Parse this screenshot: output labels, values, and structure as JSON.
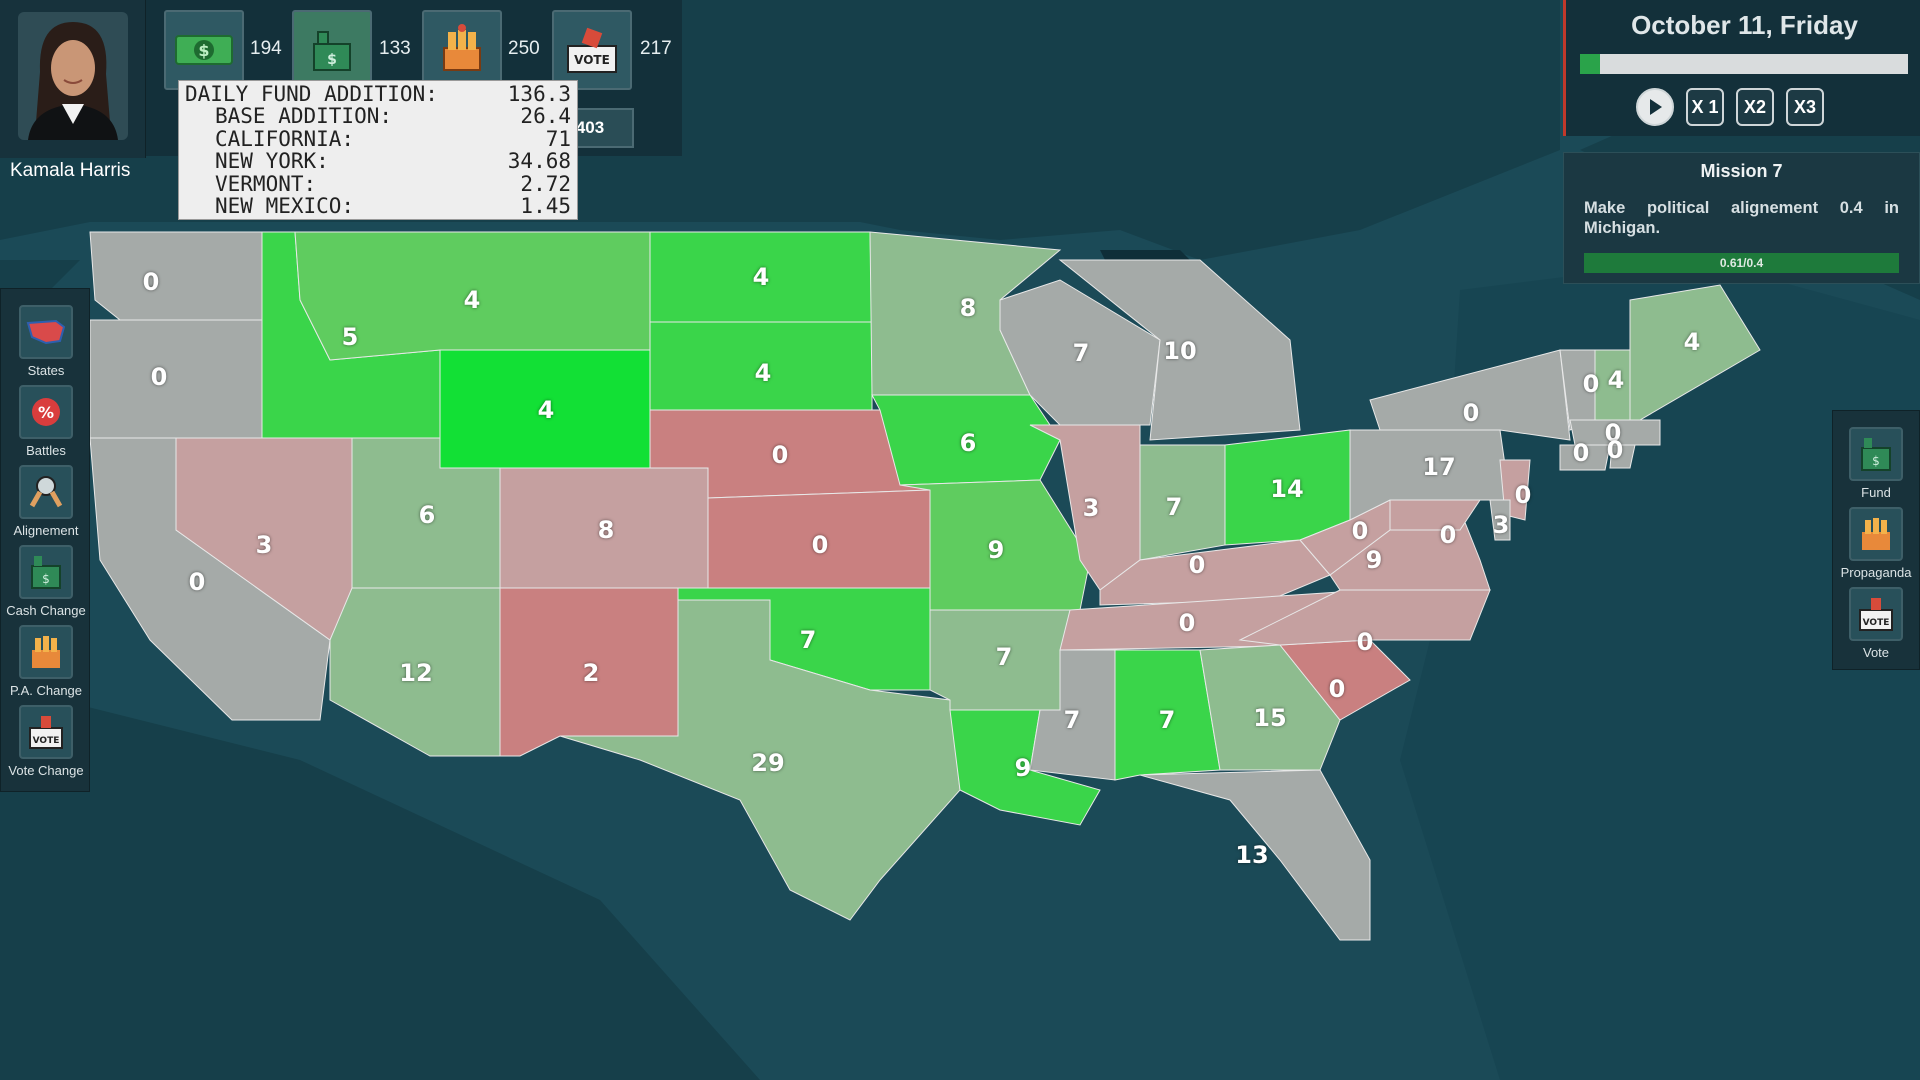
{
  "candidate": {
    "name": "Kamala Harris"
  },
  "resources": [
    {
      "icon": "money-icon",
      "value": "194"
    },
    {
      "icon": "fund-building-icon",
      "value": "133"
    },
    {
      "icon": "propaganda-fist-icon",
      "value": "250"
    },
    {
      "icon": "vote-box-icon",
      "value": "217"
    }
  ],
  "secondary_value": "403",
  "tooltip": {
    "rows": [
      {
        "label": "DAILY FUND ADDITION:",
        "value": "136.3"
      },
      {
        "label": "BASE ADDITION:",
        "value": "26.4"
      },
      {
        "label": "CALIFORNIA:",
        "value": "71"
      },
      {
        "label": "NEW YORK:",
        "value": "34.68"
      },
      {
        "label": "VERMONT:",
        "value": "2.72"
      },
      {
        "label": "NEW MEXICO:",
        "value": "1.45"
      }
    ]
  },
  "date": {
    "text": "October 11, Friday",
    "progress": 0.06
  },
  "speed": {
    "x1": "X 1",
    "x2": "X2",
    "x3": "X3"
  },
  "mission": {
    "title": "Mission 7",
    "text": "Make political alignement 0.4 in Michigan.",
    "progress_text": "0.61/0.4"
  },
  "left_tools": [
    {
      "label": "States",
      "icon": "us-map-icon"
    },
    {
      "label": "Battles",
      "icon": "percent-badge-icon"
    },
    {
      "label": "Alignement",
      "icon": "scales-icon"
    },
    {
      "label": "Cash Change",
      "icon": "fund-building-icon"
    },
    {
      "label": "P.A. Change",
      "icon": "propaganda-fist-icon"
    },
    {
      "label": "Vote Change",
      "icon": "vote-box-icon"
    }
  ],
  "right_tools": [
    {
      "label": "Fund",
      "icon": "fund-building-icon"
    },
    {
      "label": "Propaganda",
      "icon": "propaganda-fist-icon"
    },
    {
      "label": "Vote",
      "icon": "vote-box-icon"
    }
  ],
  "colors": {
    "sea": "#1b4a57",
    "strong_green": "#12e035",
    "green": "#3ad54a",
    "light_green": "#5fcc5f",
    "pale_green": "#8ebc8f",
    "gray": "#a5aaa8",
    "pale_red": "#c5a0a0",
    "red": "#c98080"
  },
  "states": [
    {
      "id": "WA",
      "value": "0"
    },
    {
      "id": "OR",
      "value": "0"
    },
    {
      "id": "CA",
      "value": "0"
    },
    {
      "id": "ID",
      "value": "5"
    },
    {
      "id": "MT",
      "value": "4"
    },
    {
      "id": "WY",
      "value": "4"
    },
    {
      "id": "NV",
      "value": "3"
    },
    {
      "id": "UT",
      "value": "6"
    },
    {
      "id": "CO",
      "value": "8"
    },
    {
      "id": "AZ",
      "value": "12"
    },
    {
      "id": "NM",
      "value": "2"
    },
    {
      "id": "ND",
      "value": "4"
    },
    {
      "id": "SD",
      "value": "4"
    },
    {
      "id": "NE",
      "value": "0"
    },
    {
      "id": "KS",
      "value": "0"
    },
    {
      "id": "OK",
      "value": "7"
    },
    {
      "id": "TX",
      "value": "29"
    },
    {
      "id": "MN",
      "value": "8"
    },
    {
      "id": "IA",
      "value": "6"
    },
    {
      "id": "MO",
      "value": "9"
    },
    {
      "id": "AR",
      "value": "7"
    },
    {
      "id": "LA",
      "value": "9"
    },
    {
      "id": "WI",
      "value": "7"
    },
    {
      "id": "MI",
      "value": "10"
    },
    {
      "id": "IL",
      "value": "3"
    },
    {
      "id": "IN",
      "value": "7"
    },
    {
      "id": "OH",
      "value": "14"
    },
    {
      "id": "KY",
      "value": "0"
    },
    {
      "id": "TN",
      "value": "0"
    },
    {
      "id": "MS",
      "value": "7"
    },
    {
      "id": "AL",
      "value": "7"
    },
    {
      "id": "GA",
      "value": "15"
    },
    {
      "id": "FL",
      "value": "13"
    },
    {
      "id": "SC",
      "value": "0"
    },
    {
      "id": "NC",
      "value": "0"
    },
    {
      "id": "VA",
      "value": "9"
    },
    {
      "id": "WV",
      "value": "0"
    },
    {
      "id": "PA",
      "value": "17"
    },
    {
      "id": "NY",
      "value": "0"
    },
    {
      "id": "NJ",
      "value": "0"
    },
    {
      "id": "MD",
      "value": "0"
    },
    {
      "id": "DE",
      "value": "3"
    },
    {
      "id": "VT",
      "value": "0"
    },
    {
      "id": "NH",
      "value": "4"
    },
    {
      "id": "ME",
      "value": "4"
    },
    {
      "id": "MA",
      "value": "0"
    },
    {
      "id": "CT",
      "value": "0"
    },
    {
      "id": "RI",
      "value": "0"
    }
  ]
}
